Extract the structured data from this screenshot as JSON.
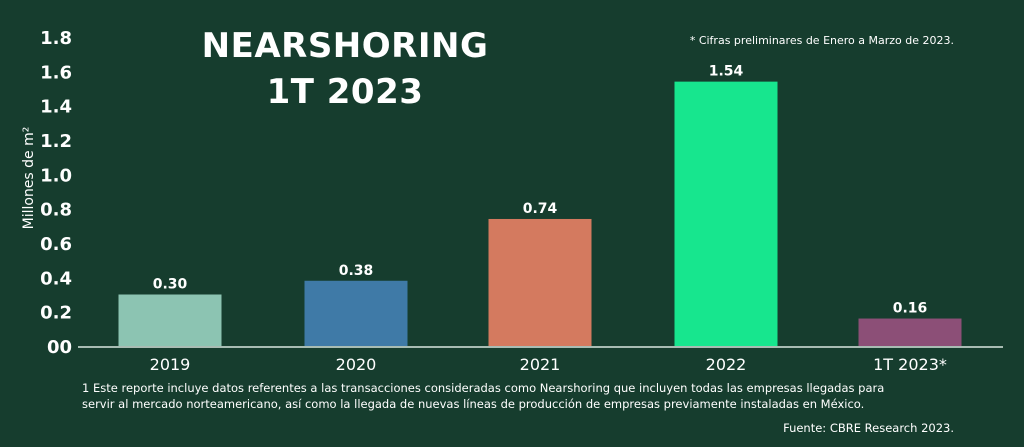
{
  "title_line1": "NEARSHORING",
  "title_line2": "1T 2023",
  "note": "* Cifras preliminares de Enero a Marzo de 2023.",
  "footnote_line1": "1 Este reporte incluye datos referentes a las transacciones consideradas como Nearshoring que incluyen todas las empresas llegadas para",
  "footnote_line2": "servir al mercado norteamericano, así como la llegada de nuevas líneas de producción de empresas previamente instaladas en México.",
  "source": "Fuente: CBRE Research 2023.",
  "colors": {
    "background": "#163d2e",
    "text": "#ffffff",
    "axis": "#d9e6df"
  },
  "chart_data": {
    "type": "bar",
    "title": "NEARSHORING 1T 2023",
    "ylabel": "Millones de m²",
    "ylim": [
      0,
      1.8
    ],
    "ytick_values": [
      0,
      0.2,
      0.4,
      0.6,
      0.8,
      1.0,
      1.2,
      1.4,
      1.6,
      1.8
    ],
    "ytick_labels": [
      "00",
      "0.2",
      "0.4",
      "0.6",
      "0.8",
      "1.0",
      "1.2",
      "1.4",
      "1.6",
      "1.8"
    ],
    "categories": [
      "2019",
      "2020",
      "2021",
      "2022",
      "1T 2023*"
    ],
    "values": [
      0.3,
      0.38,
      0.74,
      1.54,
      0.16
    ],
    "data_labels": [
      "0.30",
      "0.38",
      "0.74",
      "1.54",
      "0.16"
    ],
    "bar_colors": [
      "#8cc4b2",
      "#3f7aa7",
      "#d47a5f",
      "#17e68e",
      "#8c4f77"
    ],
    "grid": false,
    "legend": "none"
  }
}
